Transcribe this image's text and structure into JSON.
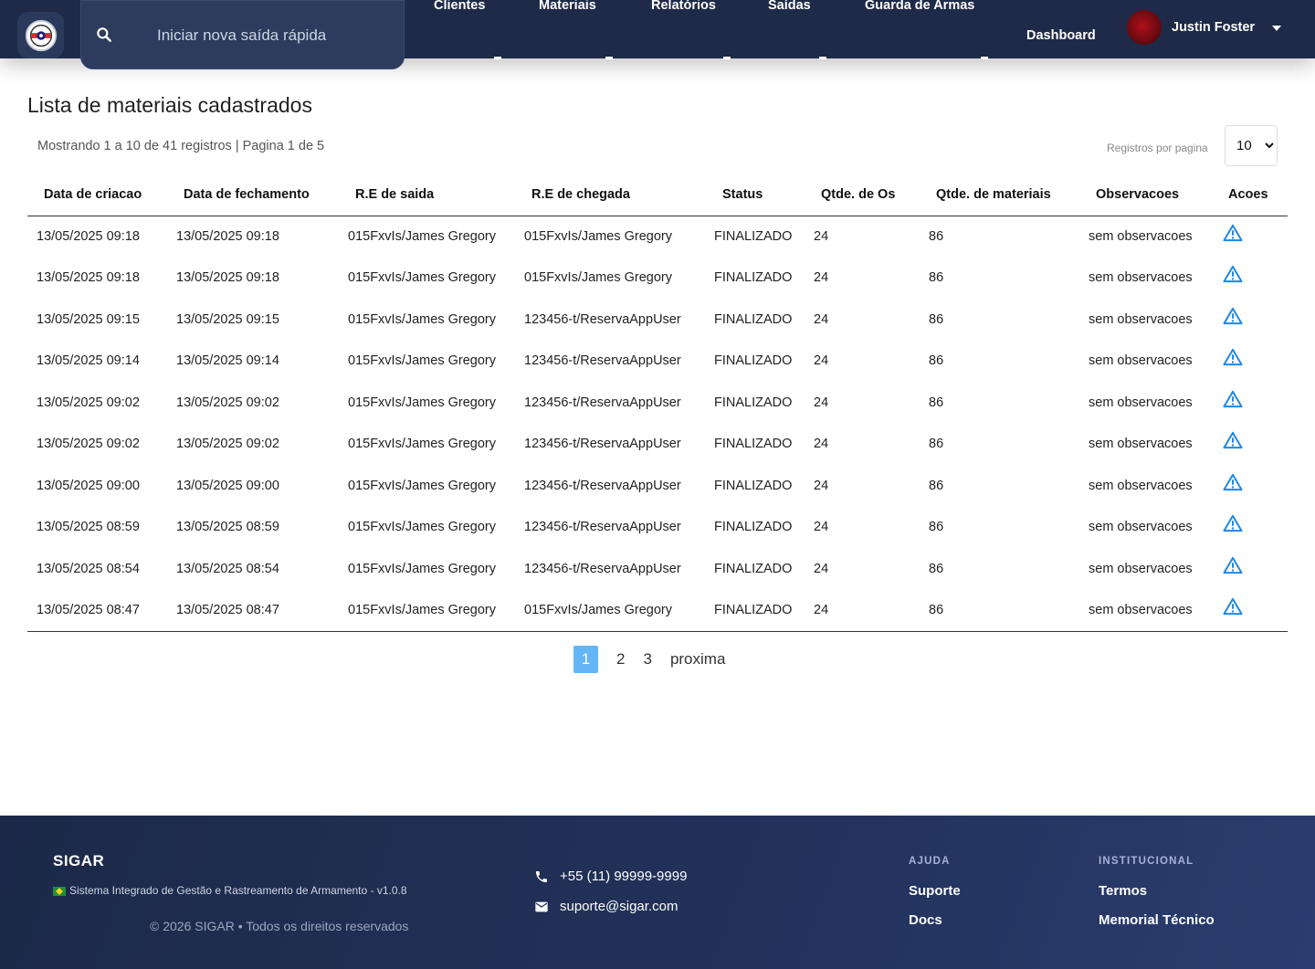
{
  "header": {
    "search_placeholder": "Iniciar nova saída rápida",
    "nav": [
      "Clientes",
      "Materiais",
      "Relatórios",
      "Saídas",
      "Guarda de Armas"
    ],
    "dashboard": "Dashboard",
    "user_name": "Justin Foster"
  },
  "main": {
    "title": "Lista de materiais cadastrados",
    "showing": "Mostrando 1 a 10 de 41 registros | Pagina 1 de 5",
    "per_page_label": "Registros por pagina",
    "per_page_value": "10",
    "columns": [
      "Data de criacao",
      "Data de fechamento",
      "R.E de saida",
      "R.E de chegada",
      "Status",
      "Qtde. de Os",
      "Qtde. de materiais",
      "Observacoes",
      "Acoes"
    ],
    "rows": [
      [
        "13/05/2025 09:18",
        "13/05/2025 09:18",
        "015FxvIs/James Gregory",
        "015FxvIs/James Gregory",
        "FINALIZADO",
        "24",
        "86",
        "sem observacoes"
      ],
      [
        "13/05/2025 09:18",
        "13/05/2025 09:18",
        "015FxvIs/James Gregory",
        "015FxvIs/James Gregory",
        "FINALIZADO",
        "24",
        "86",
        "sem observacoes"
      ],
      [
        "13/05/2025 09:15",
        "13/05/2025 09:15",
        "015FxvIs/James Gregory",
        "123456-t/ReservaAppUser",
        "FINALIZADO",
        "24",
        "86",
        "sem observacoes"
      ],
      [
        "13/05/2025 09:14",
        "13/05/2025 09:14",
        "015FxvIs/James Gregory",
        "123456-t/ReservaAppUser",
        "FINALIZADO",
        "24",
        "86",
        "sem observacoes"
      ],
      [
        "13/05/2025 09:02",
        "13/05/2025 09:02",
        "015FxvIs/James Gregory",
        "123456-t/ReservaAppUser",
        "FINALIZADO",
        "24",
        "86",
        "sem observacoes"
      ],
      [
        "13/05/2025 09:02",
        "13/05/2025 09:02",
        "015FxvIs/James Gregory",
        "123456-t/ReservaAppUser",
        "FINALIZADO",
        "24",
        "86",
        "sem observacoes"
      ],
      [
        "13/05/2025 09:00",
        "13/05/2025 09:00",
        "015FxvIs/James Gregory",
        "123456-t/ReservaAppUser",
        "FINALIZADO",
        "24",
        "86",
        "sem observacoes"
      ],
      [
        "13/05/2025 08:59",
        "13/05/2025 08:59",
        "015FxvIs/James Gregory",
        "123456-t/ReservaAppUser",
        "FINALIZADO",
        "24",
        "86",
        "sem observacoes"
      ],
      [
        "13/05/2025 08:54",
        "13/05/2025 08:54",
        "015FxvIs/James Gregory",
        "123456-t/ReservaAppUser",
        "FINALIZADO",
        "24",
        "86",
        "sem observacoes"
      ],
      [
        "13/05/2025 08:47",
        "13/05/2025 08:47",
        "015FxvIs/James Gregory",
        "015FxvIs/James Gregory",
        "FINALIZADO",
        "24",
        "86",
        "sem observacoes"
      ]
    ],
    "action_icon": "warning-triangle-icon",
    "pagination": {
      "pages": [
        "1",
        "2",
        "3"
      ],
      "active": "1",
      "next": "proxima"
    }
  },
  "footer": {
    "brand": "SIGAR",
    "description": "Sistema Integrado de Gestão e Rastreamento de Armamento - v1.0.8",
    "copyright": "© 2026 SIGAR • Todos os direitos reservados",
    "phone": "+55 (11) 99999-9999",
    "email": "suporte@sigar.com",
    "help_heading": "AJUDA",
    "help_links": [
      "Suporte",
      "Docs"
    ],
    "inst_heading": "INSTITUCIONAL",
    "inst_links": [
      "Termos",
      "Memorial Técnico"
    ]
  },
  "colors": {
    "header_bg": "#1e2a48",
    "status_green": "#3aa843",
    "action_blue": "#1e88e5",
    "pager_active": "#64b5f6"
  }
}
